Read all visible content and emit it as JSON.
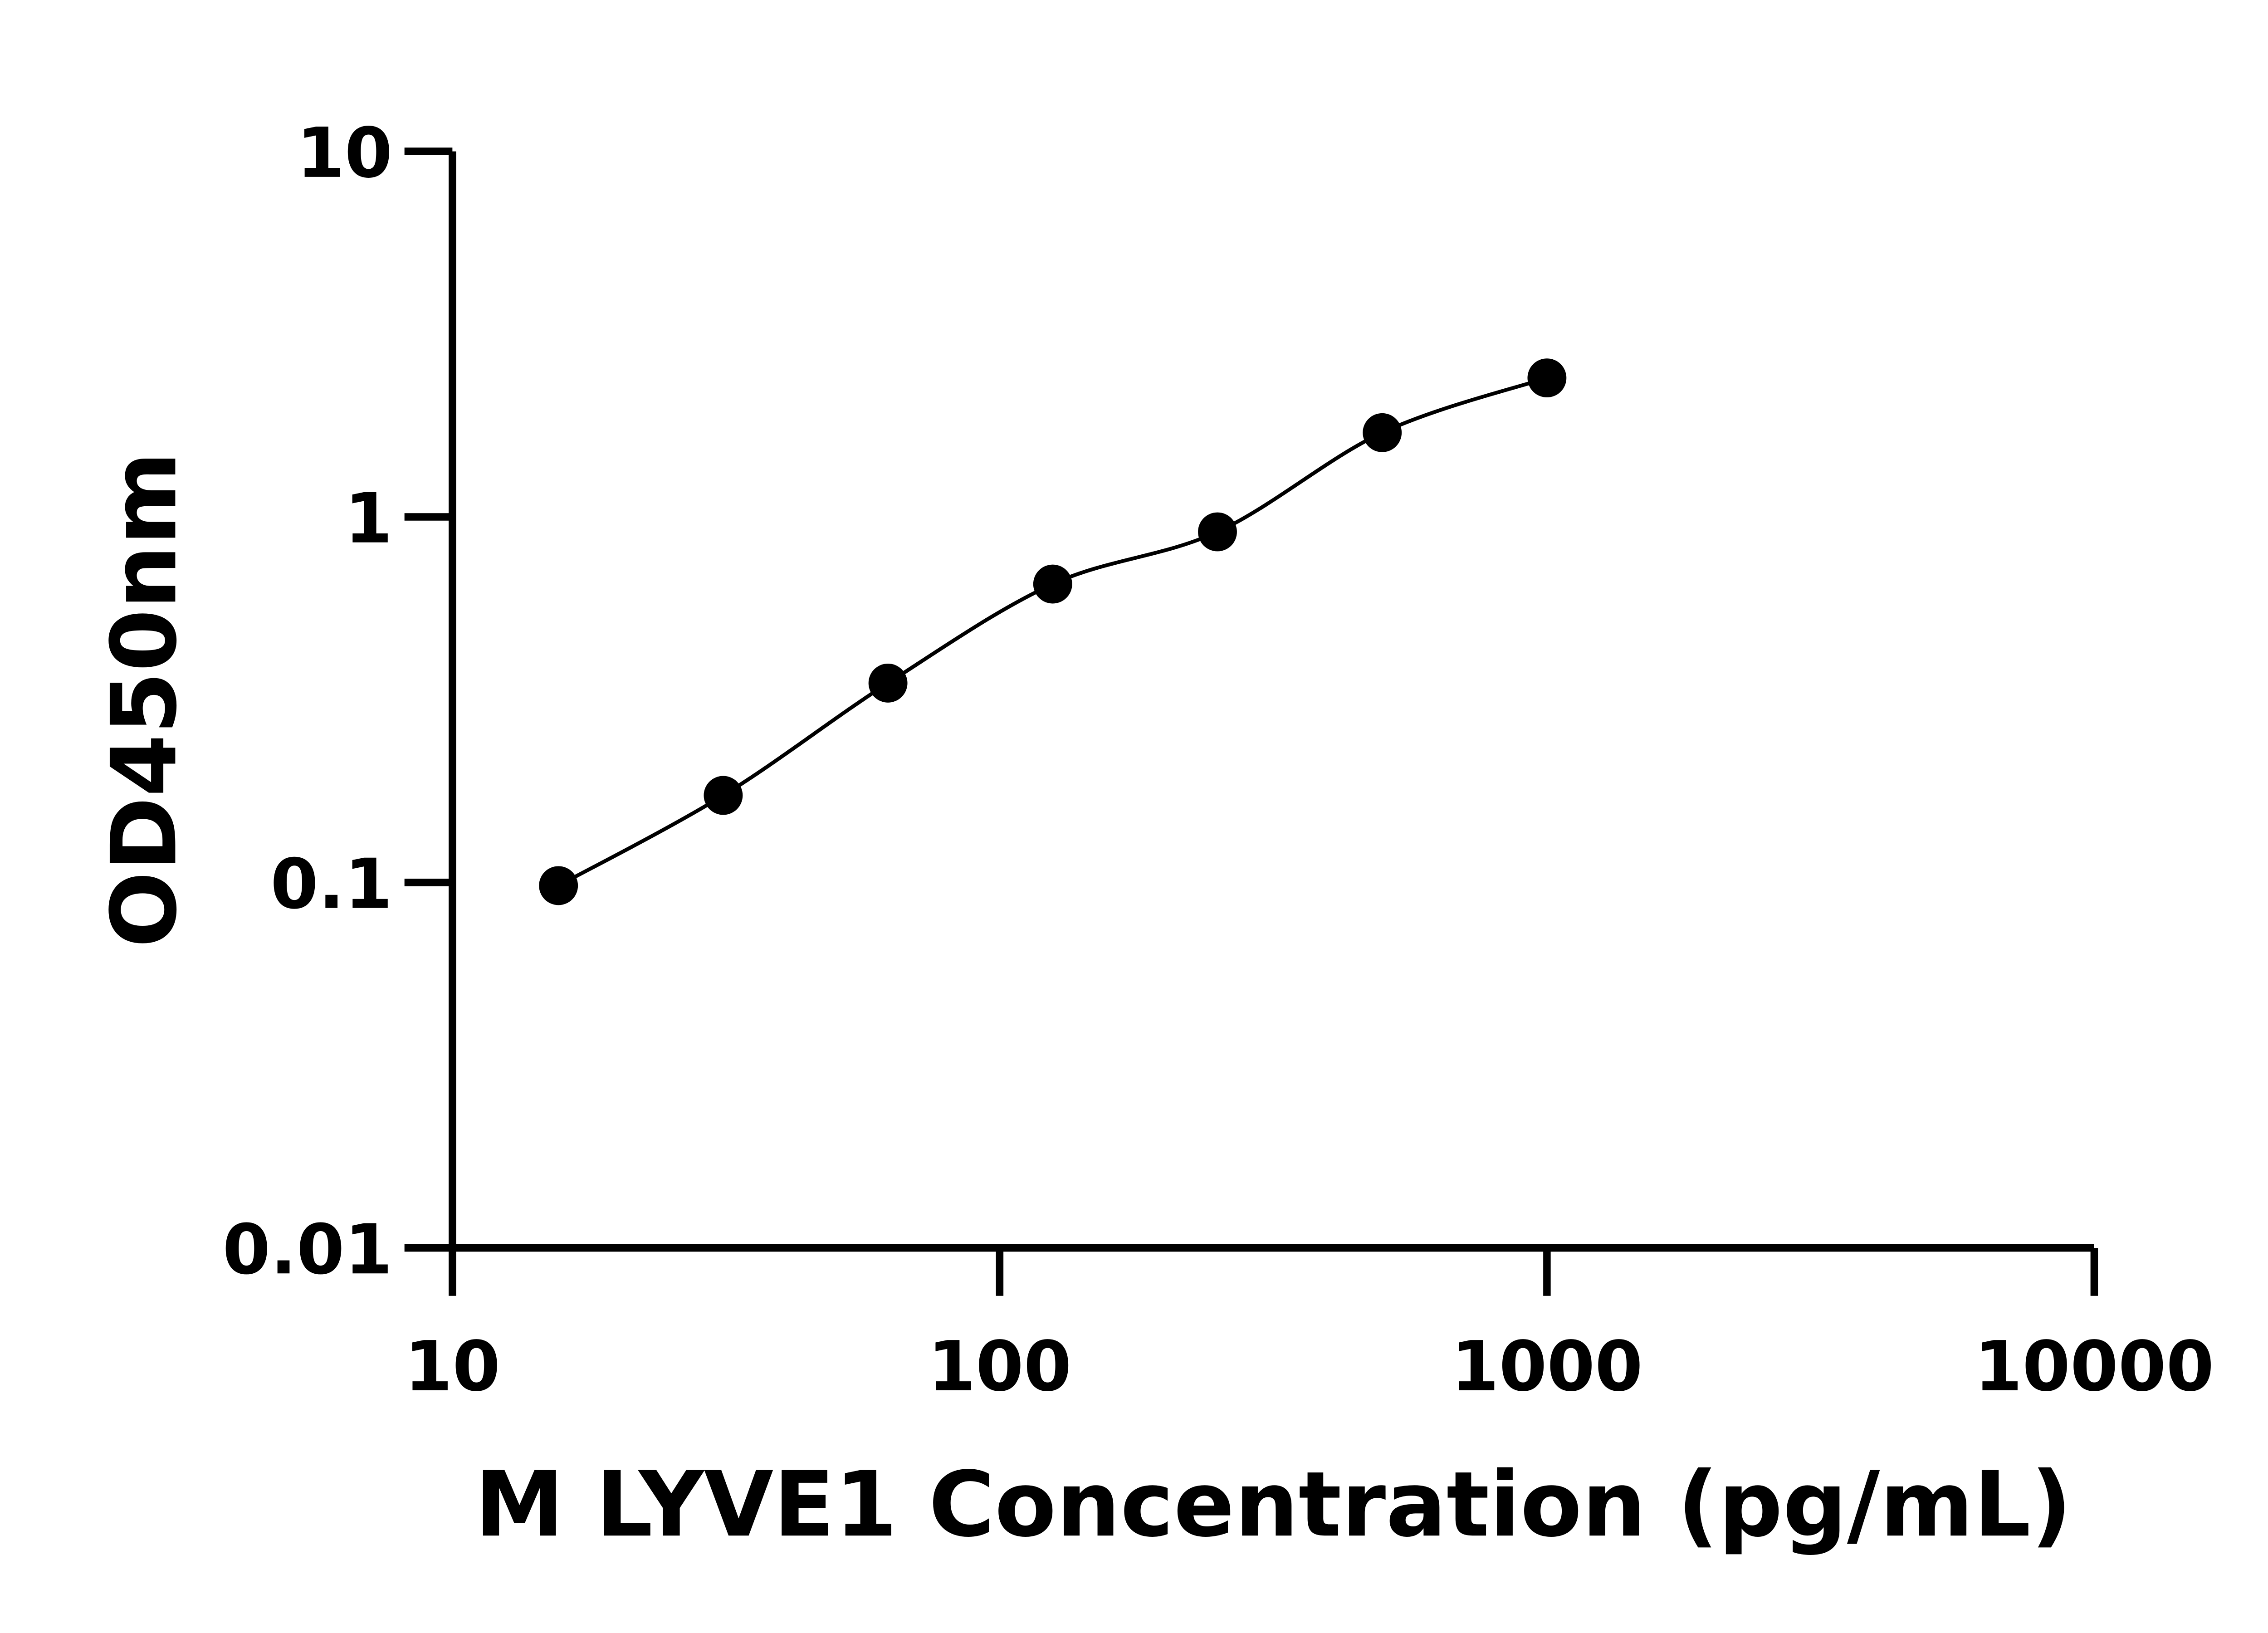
{
  "chart_data": {
    "type": "scatter",
    "title": "",
    "xlabel": "M LYVE1 Concentration (pg/mL)",
    "ylabel": "OD450nm",
    "x_scale": "log",
    "y_scale": "log",
    "xlim": [
      10,
      10000
    ],
    "ylim": [
      0.01,
      10
    ],
    "x_ticks": [
      "10",
      "100",
      "1000",
      "10000"
    ],
    "y_ticks": [
      "0.01",
      "0.1",
      "1",
      "10"
    ],
    "grid": false,
    "marker_color": "#000000",
    "line_color": "#000000",
    "series": [
      {
        "x": [
          15.625,
          31.25,
          62.5,
          125,
          250,
          500,
          1000
        ],
        "y": [
          0.098,
          0.173,
          0.351,
          0.655,
          0.91,
          1.7,
          2.4
        ]
      }
    ]
  }
}
